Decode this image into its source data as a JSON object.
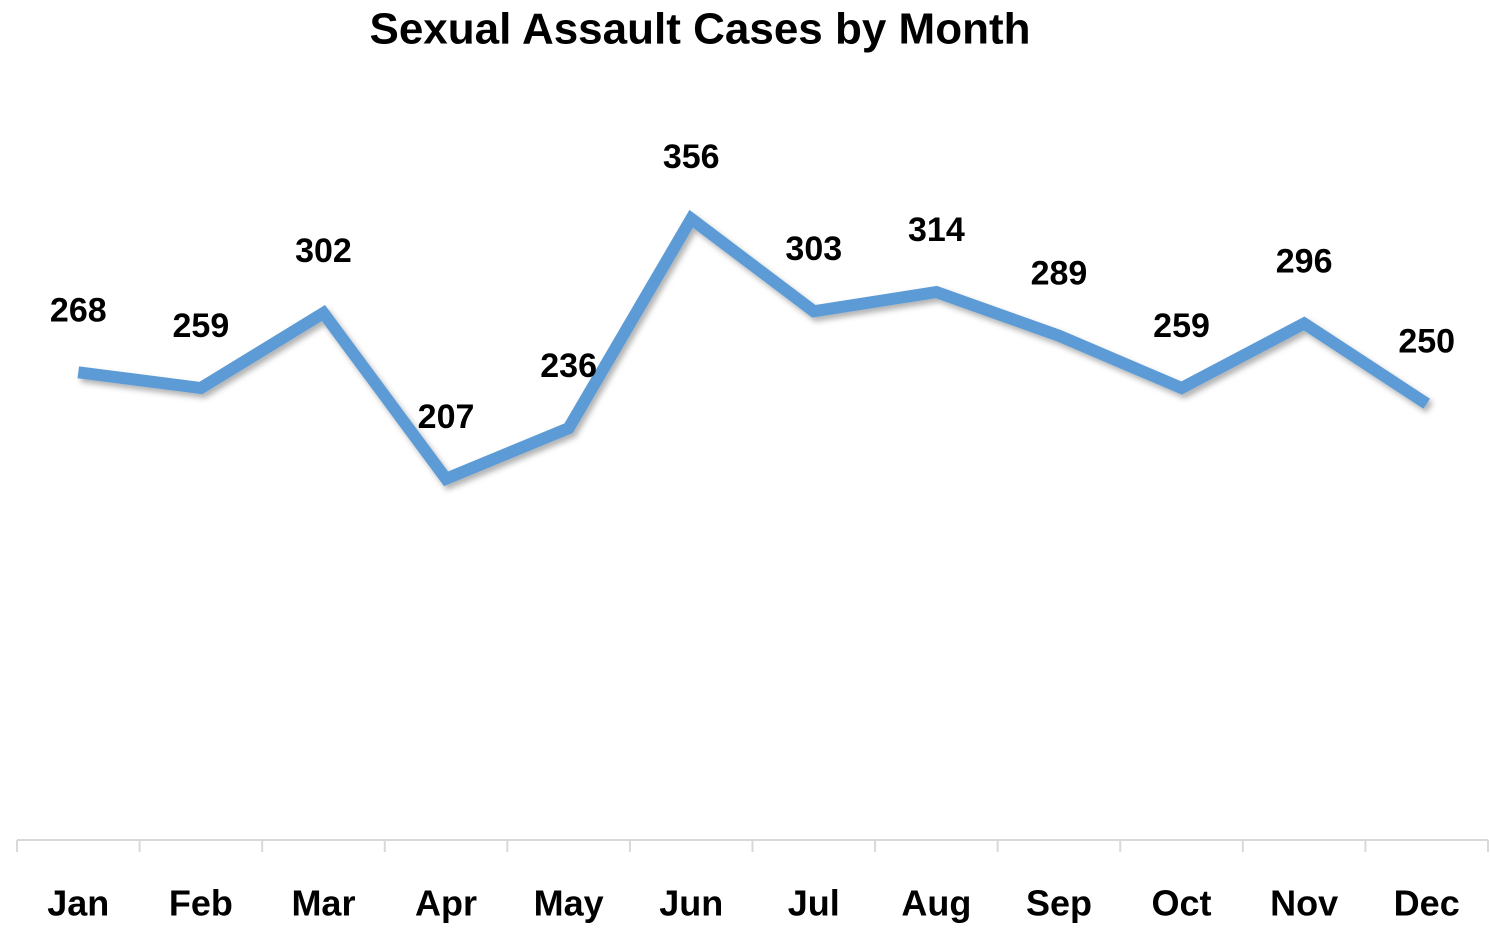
{
  "chart_data": {
    "type": "line",
    "title": "Sexual Assault Cases by Month",
    "categories": [
      "Jan",
      "Feb",
      "Mar",
      "Apr",
      "May",
      "Jun",
      "Jul",
      "Aug",
      "Sep",
      "Oct",
      "Nov",
      "Dec"
    ],
    "values": [
      268,
      259,
      302,
      207,
      236,
      356,
      303,
      314,
      289,
      259,
      296,
      250
    ],
    "color": "#5b9bd5",
    "ylim": [
      0,
      400
    ]
  }
}
